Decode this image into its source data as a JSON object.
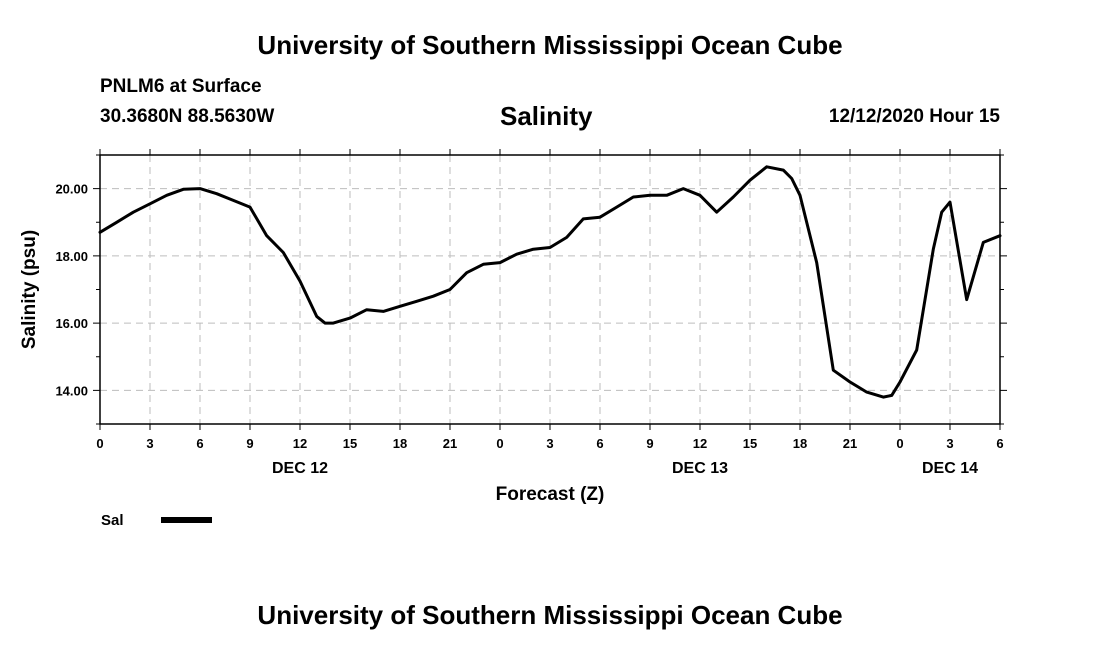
{
  "header": {
    "title_top": "University of Southern Mississippi Ocean Cube",
    "station": "PNLM6 at Surface",
    "coords": "30.3680N 88.5630W",
    "datetime": "12/12/2020 Hour 15",
    "title_bottom": "University of Southern Mississippi Ocean Cube"
  },
  "chart_data": {
    "type": "line",
    "title": "Salinity",
    "xlabel": "Forecast (Z)",
    "ylabel": "Salinity (psu)",
    "ylim": [
      13.0,
      21.0
    ],
    "xlim": [
      0,
      54
    ],
    "yticks": [
      14,
      16,
      18,
      20
    ],
    "ytick_labels": [
      "14.00",
      "16.00",
      "18.00",
      "20.00"
    ],
    "xticks": [
      0,
      3,
      6,
      9,
      12,
      15,
      18,
      21,
      24,
      27,
      30,
      33,
      36,
      39,
      42,
      45,
      48,
      51,
      54
    ],
    "xtick_labels": [
      "0",
      "3",
      "6",
      "9",
      "12",
      "15",
      "18",
      "21",
      "0",
      "3",
      "6",
      "9",
      "12",
      "15",
      "18",
      "21",
      "0",
      "3",
      "6"
    ],
    "date_labels": [
      {
        "x": 12,
        "label": "DEC 12"
      },
      {
        "x": 36,
        "label": "DEC 13"
      },
      {
        "x": 51,
        "label": "DEC 14"
      }
    ],
    "grid": true,
    "legend_position": "bottom-left",
    "series": [
      {
        "name": "Sal",
        "color": "#000000",
        "x": [
          0,
          1,
          2,
          3,
          4,
          5,
          6,
          7,
          8,
          9,
          10,
          11,
          12,
          13,
          13.5,
          14,
          15,
          16,
          17,
          18,
          19,
          20,
          21,
          22,
          23,
          24,
          25,
          26,
          27,
          28,
          29,
          30,
          31,
          32,
          33,
          34,
          35,
          36,
          37,
          38,
          39,
          40,
          41,
          41.5,
          42,
          43,
          44,
          45,
          45.5,
          46,
          47,
          47.5,
          48,
          49,
          50,
          50.5,
          51,
          52,
          53,
          54
        ],
        "values": [
          18.7,
          19.0,
          19.3,
          19.55,
          19.8,
          19.98,
          20.0,
          19.85,
          19.65,
          19.45,
          18.6,
          18.1,
          17.25,
          16.2,
          16.0,
          16.0,
          16.15,
          16.4,
          16.35,
          16.5,
          16.65,
          16.8,
          17.0,
          17.5,
          17.75,
          17.8,
          18.05,
          18.2,
          18.25,
          18.55,
          19.1,
          19.15,
          19.45,
          19.75,
          19.8,
          19.8,
          20.0,
          19.8,
          19.3,
          19.75,
          20.25,
          20.65,
          20.55,
          20.3,
          19.8,
          17.8,
          14.6,
          14.25,
          14.1,
          13.95,
          13.8,
          13.85,
          14.25,
          15.2,
          18.2,
          19.3,
          19.6,
          16.7,
          18.4,
          18.6
        ]
      }
    ]
  }
}
